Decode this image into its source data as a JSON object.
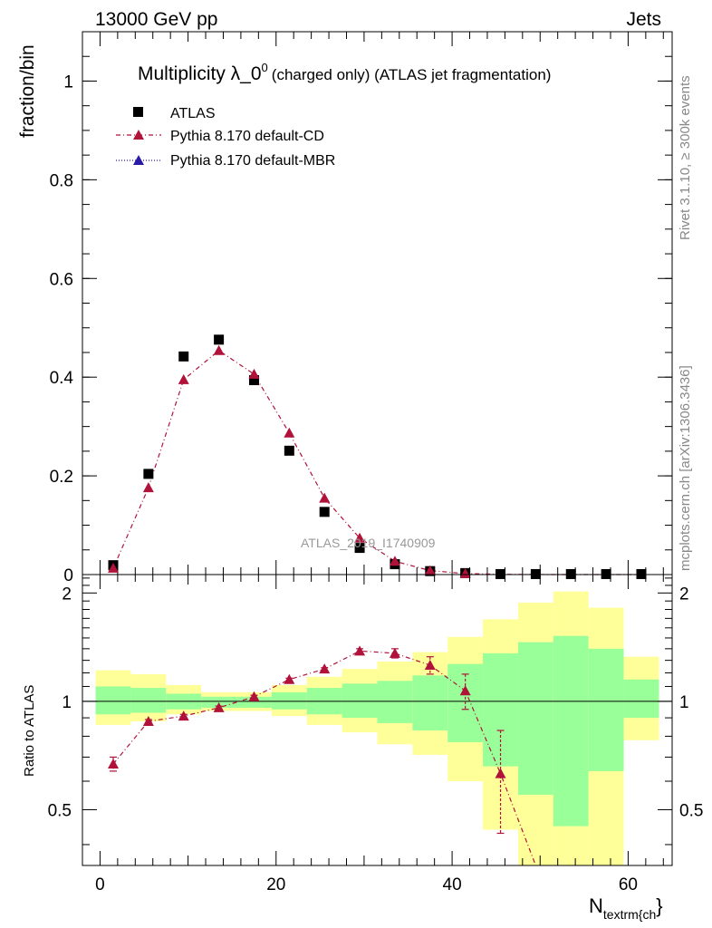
{
  "header": {
    "left": "13000 GeV pp",
    "right": "Jets"
  },
  "side_labels": {
    "rivet": "Rivet 3.1.10, ≥ 300k events",
    "mcplots": "mcplots.cern.ch [arXiv:1306.3436]"
  },
  "chart_data": [
    {
      "type": "scatter",
      "title_main": "Multiplicity λ_0",
      "title_sup": "0",
      "title_rest": "(charged only) (ATLAS jet fragmentation)",
      "ylabel": "fraction/bin",
      "xlabel_main": "N",
      "xlabel_sub": "textrm{ch",
      "xlabel_close": "}",
      "watermark": "ATLAS_2019_I1740909",
      "xlim": [
        -2,
        65
      ],
      "ylim": [
        0,
        1.1
      ],
      "x_ticks": [
        "0",
        "20",
        "40",
        "60"
      ],
      "y_ticks": [
        "0",
        "0.2",
        "0.4",
        "0.6",
        "0.8",
        "1"
      ],
      "legend_position": "top-left",
      "legend": [
        "ATLAS",
        "Pythia 8.170 default-CD",
        "Pythia 8.170 default-MBR"
      ],
      "colors": {
        "atlas": "#000000",
        "cd": "#b0123a",
        "mbr": "#2a1aa8"
      },
      "x": [
        1.5,
        5.5,
        9.5,
        13.5,
        17.5,
        21.5,
        25.5,
        29.5,
        33.5,
        37.5,
        41.5,
        45.5,
        49.5,
        53.5,
        57.5,
        61.5
      ],
      "series": [
        {
          "name": "ATLAS",
          "values": [
            0.019,
            0.204,
            0.442,
            0.476,
            0.394,
            0.251,
            0.127,
            0.054,
            0.021,
            0.007,
            0.003,
            0.001,
            0.001,
            0.001,
            0.001,
            0.001
          ]
        },
        {
          "name": "Pythia 8.170 default-CD",
          "values": [
            0.013,
            0.176,
            0.395,
            0.454,
            0.406,
            0.287,
            0.155,
            0.074,
            0.027,
            0.008,
            0.002,
            0.0005,
            0.0001,
            0.0,
            0.0,
            0.0
          ]
        }
      ]
    },
    {
      "type": "scatter",
      "ylabel": "Ratio to ATLAS",
      "ylim": [
        0.35,
        2.25
      ],
      "log_y": true,
      "y_ticks": [
        "0.5",
        "1",
        "2"
      ],
      "bins": [
        [
          -0.5,
          3.5
        ],
        [
          3.5,
          7.5
        ],
        [
          7.5,
          11.5
        ],
        [
          11.5,
          15.5
        ],
        [
          15.5,
          19.5
        ],
        [
          19.5,
          23.5
        ],
        [
          23.5,
          27.5
        ],
        [
          27.5,
          31.5
        ],
        [
          31.5,
          35.5
        ],
        [
          35.5,
          39.5
        ],
        [
          39.5,
          43.5
        ],
        [
          43.5,
          47.5
        ],
        [
          47.5,
          51.5
        ],
        [
          51.5,
          55.5
        ],
        [
          55.5,
          59.5
        ],
        [
          59.5,
          63.5
        ]
      ],
      "band_inner": [
        [
          0.92,
          1.1
        ],
        [
          0.93,
          1.09
        ],
        [
          0.95,
          1.05
        ],
        [
          0.96,
          1.03
        ],
        [
          0.96,
          1.03
        ],
        [
          0.95,
          1.06
        ],
        [
          0.92,
          1.09
        ],
        [
          0.9,
          1.12
        ],
        [
          0.87,
          1.14
        ],
        [
          0.83,
          1.18
        ],
        [
          0.77,
          1.27
        ],
        [
          0.66,
          1.36
        ],
        [
          0.55,
          1.46
        ],
        [
          0.45,
          1.52
        ],
        [
          0.64,
          1.4
        ],
        [
          0.9,
          1.15
        ]
      ],
      "band_outer": [
        [
          0.86,
          1.22
        ],
        [
          0.88,
          1.19
        ],
        [
          0.92,
          1.11
        ],
        [
          0.94,
          1.06
        ],
        [
          0.94,
          1.06
        ],
        [
          0.91,
          1.11
        ],
        [
          0.86,
          1.17
        ],
        [
          0.82,
          1.23
        ],
        [
          0.76,
          1.29
        ],
        [
          0.71,
          1.37
        ],
        [
          0.6,
          1.51
        ],
        [
          0.44,
          1.69
        ],
        [
          0.3,
          1.88
        ],
        [
          0.25,
          2.02
        ],
        [
          0.3,
          1.82
        ],
        [
          0.78,
          1.33
        ]
      ],
      "ratio_x": [
        1.5,
        5.5,
        9.5,
        13.5,
        17.5,
        21.5,
        25.5,
        29.5,
        33.5,
        37.5,
        41.5,
        45.5,
        49.5
      ],
      "ratio_values": [
        0.67,
        0.88,
        0.91,
        0.96,
        1.03,
        1.15,
        1.23,
        1.38,
        1.36,
        1.26,
        1.07,
        0.63,
        0.07
      ],
      "ratio_err": [
        0.03,
        0.01,
        0.01,
        0.01,
        0.01,
        0.01,
        0.01,
        0.02,
        0.04,
        0.07,
        0.12,
        0.2,
        0.0
      ]
    }
  ]
}
